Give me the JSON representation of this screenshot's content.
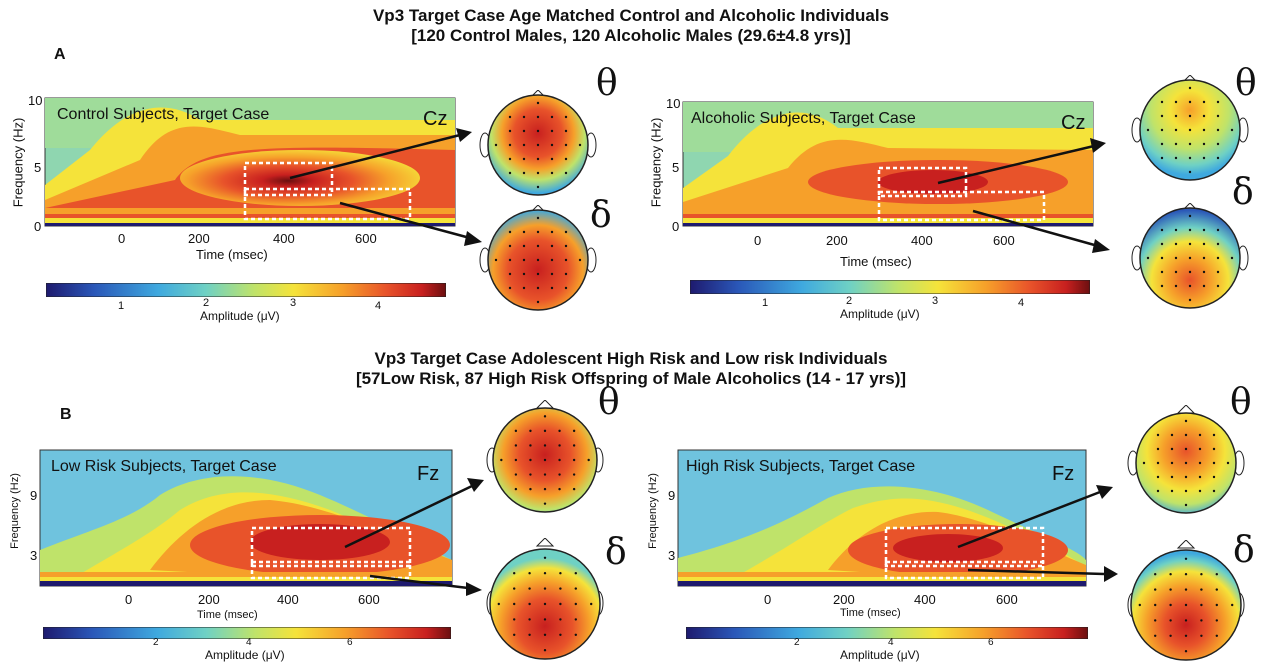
{
  "figure": {
    "top_title_1": "Vp3 Target Case Age Matched Control and Alcoholic Individuals",
    "top_title_2": "[120 Control Males, 120 Alcoholic Males (29.6±4.8 yrs)]",
    "bottom_title_1": "Vp3 Target Case Adolescent High Risk and Low risk Individuals",
    "bottom_title_2": "[57Low Risk, 87 High Risk Offspring of Male Alcoholics (14 - 17 yrs)]",
    "panel_a": "A",
    "panel_b": "B"
  },
  "panels": {
    "a_left": {
      "label": "Control Subjects, Target Case",
      "electrode": "Cz",
      "ylabel": "Frequency (Hz)",
      "xlabel": "Time (msec)",
      "yticks": [
        "10",
        "5",
        "0"
      ],
      "xticks": [
        "0",
        "200",
        "400",
        "600"
      ],
      "cbar_label": "Amplitude (μV)",
      "cbar_ticks": [
        "1",
        "2",
        "3",
        "4"
      ]
    },
    "a_right": {
      "label": "Alcoholic Subjects, Target Case",
      "electrode": "Cz",
      "ylabel": "Frequency (Hz)",
      "xlabel": "Time (msec)",
      "yticks": [
        "10",
        "5",
        "0"
      ],
      "xticks": [
        "0",
        "200",
        "400",
        "600"
      ],
      "cbar_label": "Amplitude (μV)",
      "cbar_ticks": [
        "1",
        "2",
        "3",
        "4"
      ]
    },
    "b_left": {
      "label": "Low Risk Subjects, Target Case",
      "electrode": "Fz",
      "ylabel": "Frequency (Hz)",
      "xlabel": "Time (msec)",
      "yticks": [
        "9",
        "3"
      ],
      "xticks": [
        "0",
        "200",
        "400",
        "600"
      ],
      "cbar_label": "Amplitude (μV)",
      "cbar_ticks": [
        "2",
        "4",
        "6"
      ]
    },
    "b_right": {
      "label": "High Risk Subjects, Target Case",
      "electrode": "Fz",
      "ylabel": "Frequency (Hz)",
      "xlabel": "Time (msec)",
      "yticks": [
        "9",
        "3"
      ],
      "xticks": [
        "0",
        "200",
        "400",
        "600"
      ],
      "cbar_label": "Amplitude (μV)",
      "cbar_ticks": [
        "2",
        "4",
        "6"
      ]
    }
  },
  "bands": {
    "theta": "θ",
    "delta": "δ"
  },
  "colors": {
    "jet": [
      "#1e1a6e",
      "#2a57b8",
      "#3fa9df",
      "#6fd1c4",
      "#bfe36a",
      "#f5e33a",
      "#f6a02a",
      "#e8532a",
      "#c8201f",
      "#6b0f10"
    ]
  }
}
